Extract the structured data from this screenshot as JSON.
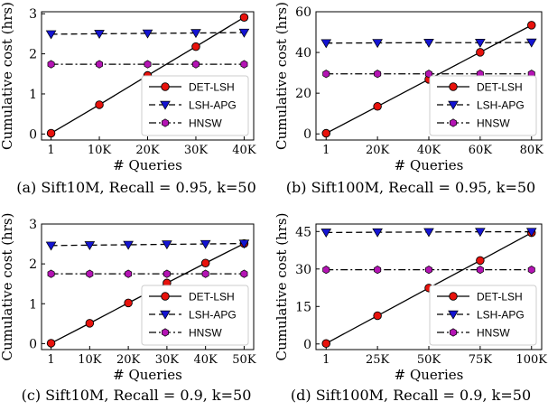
{
  "figure": {
    "legend_entries": [
      "DET-LSH",
      "LSH-APG",
      "HNSW"
    ]
  },
  "chart_data": [
    {
      "type": "line",
      "caption": "(a) Sift10M, Recall = 0.95, k=50",
      "xlabel": "# Queries",
      "ylabel": "Cumulative cost (hrs)",
      "categories": [
        "1",
        "10K",
        "20K",
        "30K",
        "40K"
      ],
      "x": [
        1,
        10000,
        20000,
        30000,
        40000
      ],
      "ylim": [
        -0.15,
        3.05
      ],
      "yticks": [
        0,
        1,
        2,
        3
      ],
      "legend_position": "lower-right",
      "grid": false,
      "series": [
        {
          "name": "DET-LSH",
          "values": [
            0.02,
            0.73,
            1.46,
            2.18,
            2.91
          ],
          "color": "#e8120c",
          "marker": "circle",
          "linestyle": "solid"
        },
        {
          "name": "LSH-APG",
          "values": [
            2.49,
            2.5,
            2.51,
            2.52,
            2.53
          ],
          "color": "#1414d2",
          "marker": "triangle-down",
          "linestyle": "dashed"
        },
        {
          "name": "HNSW",
          "values": [
            1.74,
            1.74,
            1.74,
            1.74,
            1.74
          ],
          "color": "#b414b4",
          "marker": "hexagon",
          "linestyle": "dashdot"
        }
      ]
    },
    {
      "type": "line",
      "caption": "(b) Sift100M, Recall = 0.95, k=50",
      "xlabel": "# Queries",
      "ylabel": "Cumulative cost (hrs)",
      "categories": [
        "1",
        "20K",
        "40K",
        "60K",
        "80K"
      ],
      "x": [
        1,
        20000,
        40000,
        60000,
        80000
      ],
      "ylim": [
        -3,
        60
      ],
      "yticks": [
        0,
        20,
        40,
        60
      ],
      "legend_position": "lower-right",
      "grid": false,
      "series": [
        {
          "name": "DET-LSH",
          "values": [
            0.3,
            13.5,
            26.8,
            40.1,
            53.4
          ],
          "color": "#e8120c",
          "marker": "circle",
          "linestyle": "solid"
        },
        {
          "name": "LSH-APG",
          "values": [
            44.6,
            44.7,
            44.8,
            44.8,
            44.9
          ],
          "color": "#1414d2",
          "marker": "triangle-down",
          "linestyle": "dashed"
        },
        {
          "name": "HNSW",
          "values": [
            29.5,
            29.5,
            29.5,
            29.5,
            29.5
          ],
          "color": "#b414b4",
          "marker": "hexagon",
          "linestyle": "dashdot"
        }
      ]
    },
    {
      "type": "line",
      "caption": "(c) Sift10M, Recall = 0.9, k=50",
      "xlabel": "# Queries",
      "ylabel": "Cumulative cost (hrs)",
      "categories": [
        "1",
        "10K",
        "20K",
        "30K",
        "40K",
        "50K"
      ],
      "x": [
        1,
        10000,
        20000,
        30000,
        40000,
        50000
      ],
      "ylim": [
        -0.15,
        3.0
      ],
      "yticks": [
        0,
        1,
        2,
        3
      ],
      "legend_position": "lower-right",
      "grid": false,
      "series": [
        {
          "name": "DET-LSH",
          "values": [
            0.01,
            0.51,
            1.02,
            1.52,
            2.02,
            2.51
          ],
          "color": "#e8120c",
          "marker": "circle",
          "linestyle": "solid"
        },
        {
          "name": "LSH-APG",
          "values": [
            2.46,
            2.47,
            2.48,
            2.49,
            2.5,
            2.51
          ],
          "color": "#1414d2",
          "marker": "triangle-down",
          "linestyle": "dashed"
        },
        {
          "name": "HNSW",
          "values": [
            1.75,
            1.75,
            1.75,
            1.75,
            1.75,
            1.75
          ],
          "color": "#b414b4",
          "marker": "hexagon",
          "linestyle": "dashdot"
        }
      ]
    },
    {
      "type": "line",
      "caption": "(d) Sift100M, Recall = 0.9, k=50",
      "xlabel": "# Queries",
      "ylabel": "Cumulative cost (hrs)",
      "categories": [
        "1",
        "25K",
        "50K",
        "75K",
        "100K"
      ],
      "x": [
        1,
        25000,
        50000,
        75000,
        100000
      ],
      "ylim": [
        -2.25,
        48
      ],
      "yticks": [
        0,
        15,
        30,
        45
      ],
      "legend_position": "lower-right",
      "grid": false,
      "series": [
        {
          "name": "DET-LSH",
          "values": [
            0.2,
            11.3,
            22.4,
            33.4,
            44.5
          ],
          "color": "#e8120c",
          "marker": "circle",
          "linestyle": "solid"
        },
        {
          "name": "LSH-APG",
          "values": [
            44.6,
            44.7,
            44.8,
            44.9,
            44.9
          ],
          "color": "#1414d2",
          "marker": "triangle-down",
          "linestyle": "dashed"
        },
        {
          "name": "HNSW",
          "values": [
            29.7,
            29.7,
            29.7,
            29.7,
            29.7
          ],
          "color": "#b414b4",
          "marker": "hexagon",
          "linestyle": "dashdot"
        }
      ]
    }
  ]
}
